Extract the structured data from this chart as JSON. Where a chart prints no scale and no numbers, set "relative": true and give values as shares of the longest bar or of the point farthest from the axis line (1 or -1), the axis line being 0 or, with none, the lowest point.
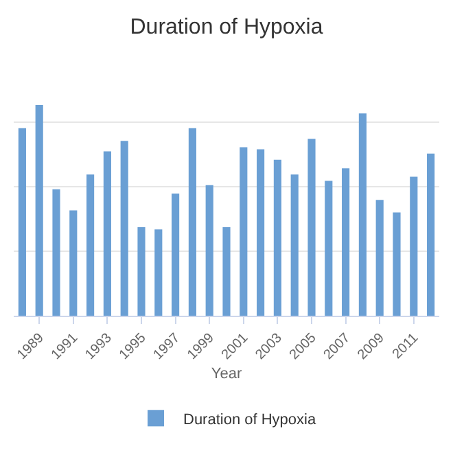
{
  "chart_data": {
    "type": "bar",
    "title": "Duration of Hypoxia",
    "xlabel": "Year",
    "relative": true,
    "grid": "y",
    "legend": "bottom",
    "categories": [
      null,
      "1989",
      null,
      "1991",
      null,
      "1993",
      null,
      "1995",
      null,
      "1997",
      null,
      "1999",
      null,
      "2001",
      null,
      "2003",
      null,
      "2005",
      null,
      "2007",
      null,
      "2009",
      null,
      "2011",
      null
    ],
    "series": [
      {
        "name": "Duration of Hypoxia",
        "color": "#6a9fd4",
        "values": [
          0.89,
          1,
          0.6,
          0.5,
          0.67,
          0.78,
          0.83,
          0.42,
          0.41,
          0.58,
          0.89,
          0.62,
          0.42,
          0.8,
          0.79,
          0.74,
          0.67,
          0.84,
          0.64,
          0.7,
          0.96,
          0.55,
          0.49,
          0.66,
          0.77
        ]
      }
    ]
  }
}
